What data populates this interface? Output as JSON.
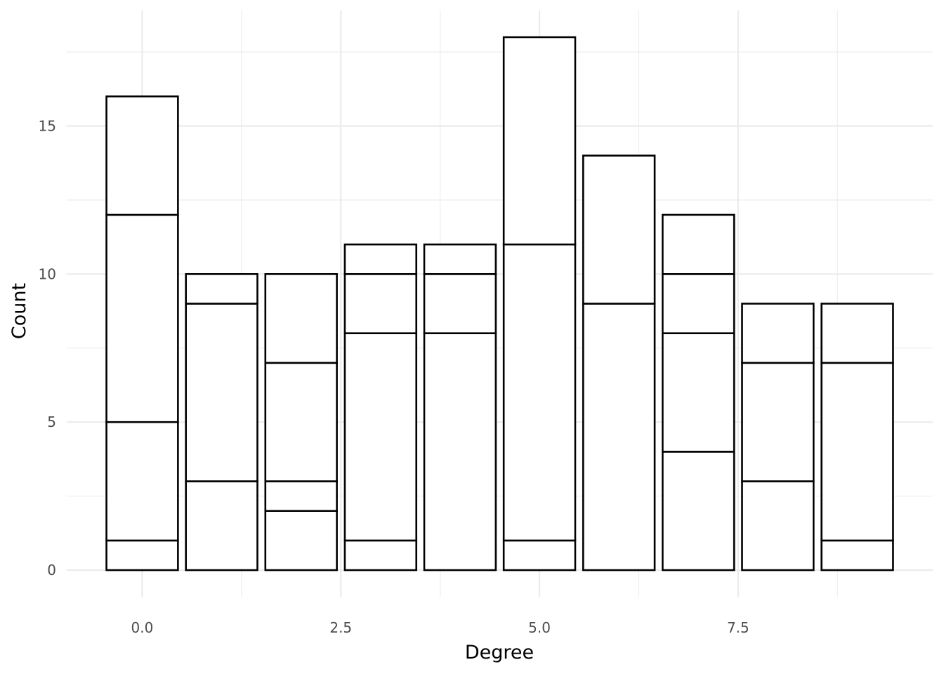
{
  "chart_data": {
    "type": "bar",
    "stacked": true,
    "xlabel": "Degree",
    "ylabel": "Count",
    "xlim": [
      -0.95,
      9.95
    ],
    "ylim": [
      -0.9,
      18.9
    ],
    "grid": true,
    "x_ticks": [
      0.0,
      2.5,
      5.0,
      7.5
    ],
    "x_tick_labels": [
      "0.0",
      "2.5",
      "5.0",
      "7.5"
    ],
    "y_ticks": [
      0,
      5,
      10,
      15
    ],
    "y_tick_labels": [
      "0",
      "5",
      "10",
      "15"
    ],
    "colors": {
      "outline": "#000000",
      "fill": "#ffffff",
      "grid": "#ebebeb",
      "background": "#ffffff"
    },
    "bars": [
      {
        "x": 0,
        "segment_tops": [
          1,
          5,
          12,
          16
        ]
      },
      {
        "x": 1,
        "segment_tops": [
          3,
          9,
          10
        ]
      },
      {
        "x": 2,
        "segment_tops": [
          2,
          3,
          7,
          10
        ]
      },
      {
        "x": 3,
        "segment_tops": [
          1,
          8,
          10,
          11
        ]
      },
      {
        "x": 4,
        "segment_tops": [
          8,
          10,
          11
        ]
      },
      {
        "x": 5,
        "segment_tops": [
          1,
          11,
          18
        ]
      },
      {
        "x": 6,
        "segment_tops": [
          9,
          14
        ]
      },
      {
        "x": 7,
        "segment_tops": [
          4,
          8,
          10,
          12
        ]
      },
      {
        "x": 8,
        "segment_tops": [
          3,
          7,
          9
        ]
      },
      {
        "x": 9,
        "segment_tops": [
          1,
          7,
          9
        ]
      }
    ]
  }
}
